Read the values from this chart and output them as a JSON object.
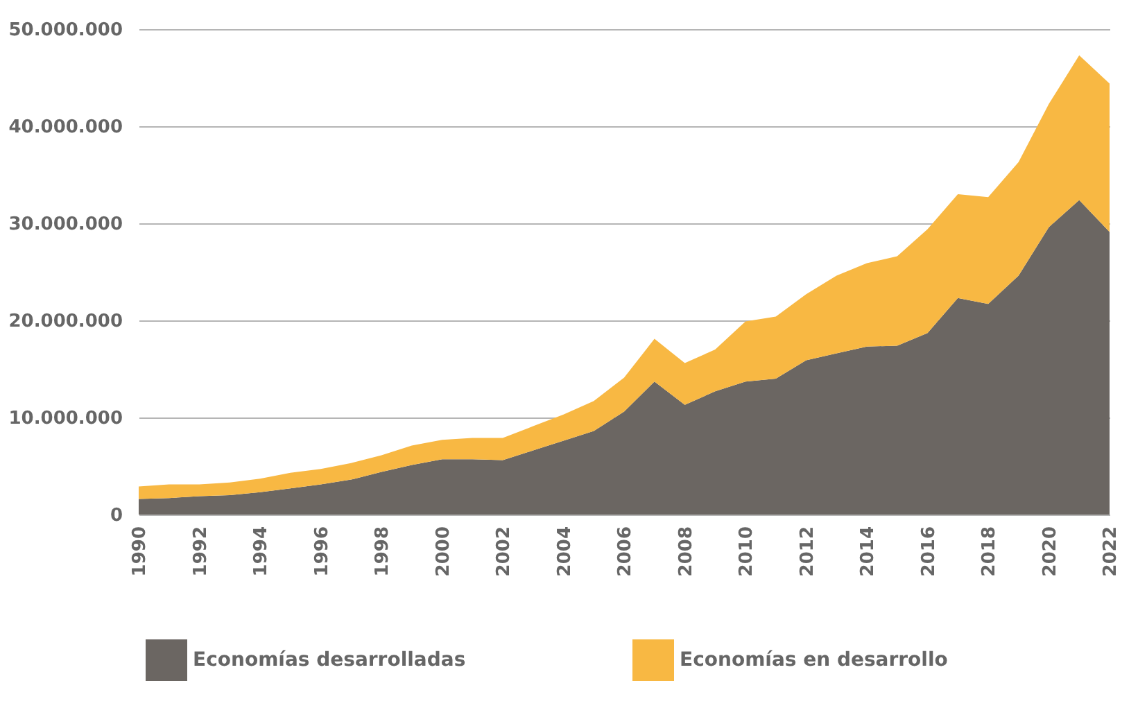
{
  "chart_data": {
    "type": "area",
    "stacked": true,
    "x": [
      1990,
      1991,
      1992,
      1993,
      1994,
      1995,
      1996,
      1997,
      1998,
      1999,
      2000,
      2001,
      2002,
      2003,
      2004,
      2005,
      2006,
      2007,
      2008,
      2009,
      2010,
      2011,
      2012,
      2013,
      2014,
      2015,
      2016,
      2017,
      2018,
      2019,
      2020,
      2021,
      2022
    ],
    "series": [
      {
        "name": "Economías desarrolladas",
        "color": "#6b6662",
        "values": [
          1600000.0,
          1700000.0,
          1900000.0,
          2000000.0,
          2300000.0,
          2700000.0,
          3100000.0,
          3600000.0,
          4400000.0,
          5100000.0,
          5700000.0,
          5700000.0,
          5600000.0,
          6600000.0,
          7600000.0,
          8600000.0,
          10600000.0,
          13700000.0,
          11300000.0,
          12700000.0,
          13700000.0,
          14000000.0,
          15900000.0,
          16600000.0,
          17300000.0,
          17400000.0,
          18700000.0,
          22300000.0,
          21700000.0,
          24600000.0,
          29600000.0,
          32400000.0,
          29100000.0
        ]
      },
      {
        "name": "Economías en desarrollo",
        "color": "#f8b843",
        "values": [
          1300000.0,
          1400000.0,
          1200000.0,
          1300000.0,
          1400000.0,
          1600000.0,
          1600000.0,
          1700000.0,
          1700000.0,
          2000000.0,
          2000000.0,
          2200000.0,
          2300000.0,
          2500000.0,
          2700000.0,
          3100000.0,
          3500000.0,
          4400000.0,
          4300000.0,
          4300000.0,
          6200000.0,
          6400000.0,
          6800000.0,
          8000000.0,
          8600000.0,
          9200000.0,
          10700000.0,
          10700000.0,
          11000000.0,
          11700000.0,
          12700000.0,
          14900000.0,
          15300000.0
        ]
      }
    ],
    "xlim": [
      1990,
      2022
    ],
    "xticks": [
      1990,
      1992,
      1994,
      1996,
      1998,
      2000,
      2002,
      2004,
      2006,
      2008,
      2010,
      2012,
      2014,
      2016,
      2018,
      2020,
      2022
    ],
    "ylim": [
      0,
      50000000
    ],
    "yticks": [
      0,
      {
        "value": 10000000,
        "label": "10.000.000"
      },
      {
        "value": 20000000,
        "label": "20.000.000"
      },
      {
        "value": 30000000,
        "label": "30.000.000"
      },
      {
        "value": 40000000,
        "label": "40.000.000"
      },
      {
        "value": 50000000,
        "label": "50.000.000"
      }
    ],
    "grid": "y",
    "legend": "bottom"
  }
}
